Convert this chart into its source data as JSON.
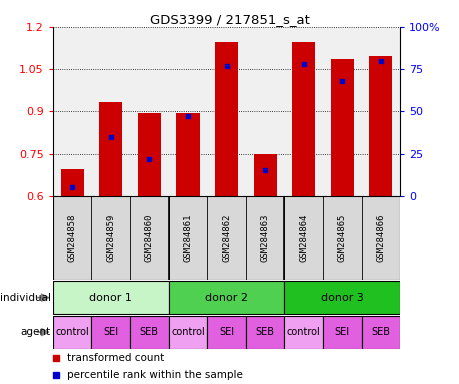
{
  "title": "GDS3399 / 217851_s_at",
  "samples": [
    "GSM284858",
    "GSM284859",
    "GSM284860",
    "GSM284861",
    "GSM284862",
    "GSM284863",
    "GSM284864",
    "GSM284865",
    "GSM284866"
  ],
  "red_values": [
    0.695,
    0.935,
    0.895,
    0.895,
    1.145,
    0.748,
    1.148,
    1.085,
    1.095
  ],
  "blue_values_pct": [
    5,
    35,
    22,
    47,
    77,
    15,
    78,
    68,
    80
  ],
  "ylim": [
    0.6,
    1.2
  ],
  "y_left_ticks": [
    0.6,
    0.75,
    0.9,
    1.05,
    1.2
  ],
  "y_right_ticks": [
    0,
    25,
    50,
    75,
    100
  ],
  "donors": [
    {
      "label": "donor 1",
      "start": 0,
      "end": 3,
      "color": "#c8f5c8"
    },
    {
      "label": "donor 2",
      "start": 3,
      "end": 6,
      "color": "#50d050"
    },
    {
      "label": "donor 3",
      "start": 6,
      "end": 9,
      "color": "#20c020"
    }
  ],
  "agents": [
    "control",
    "SEI",
    "SEB",
    "control",
    "SEI",
    "SEB",
    "control",
    "SEI",
    "SEB"
  ],
  "agent_colors": [
    "#f0a0f0",
    "#e060e0",
    "#e060e0",
    "#f0a0f0",
    "#e060e0",
    "#e060e0",
    "#f0a0f0",
    "#e060e0",
    "#e060e0"
  ],
  "bar_color": "#cc0000",
  "dot_color": "#0000cc",
  "bar_bottom": 0.6,
  "xtick_bg": "#d8d8d8",
  "plot_bg": "#f0f0f0"
}
